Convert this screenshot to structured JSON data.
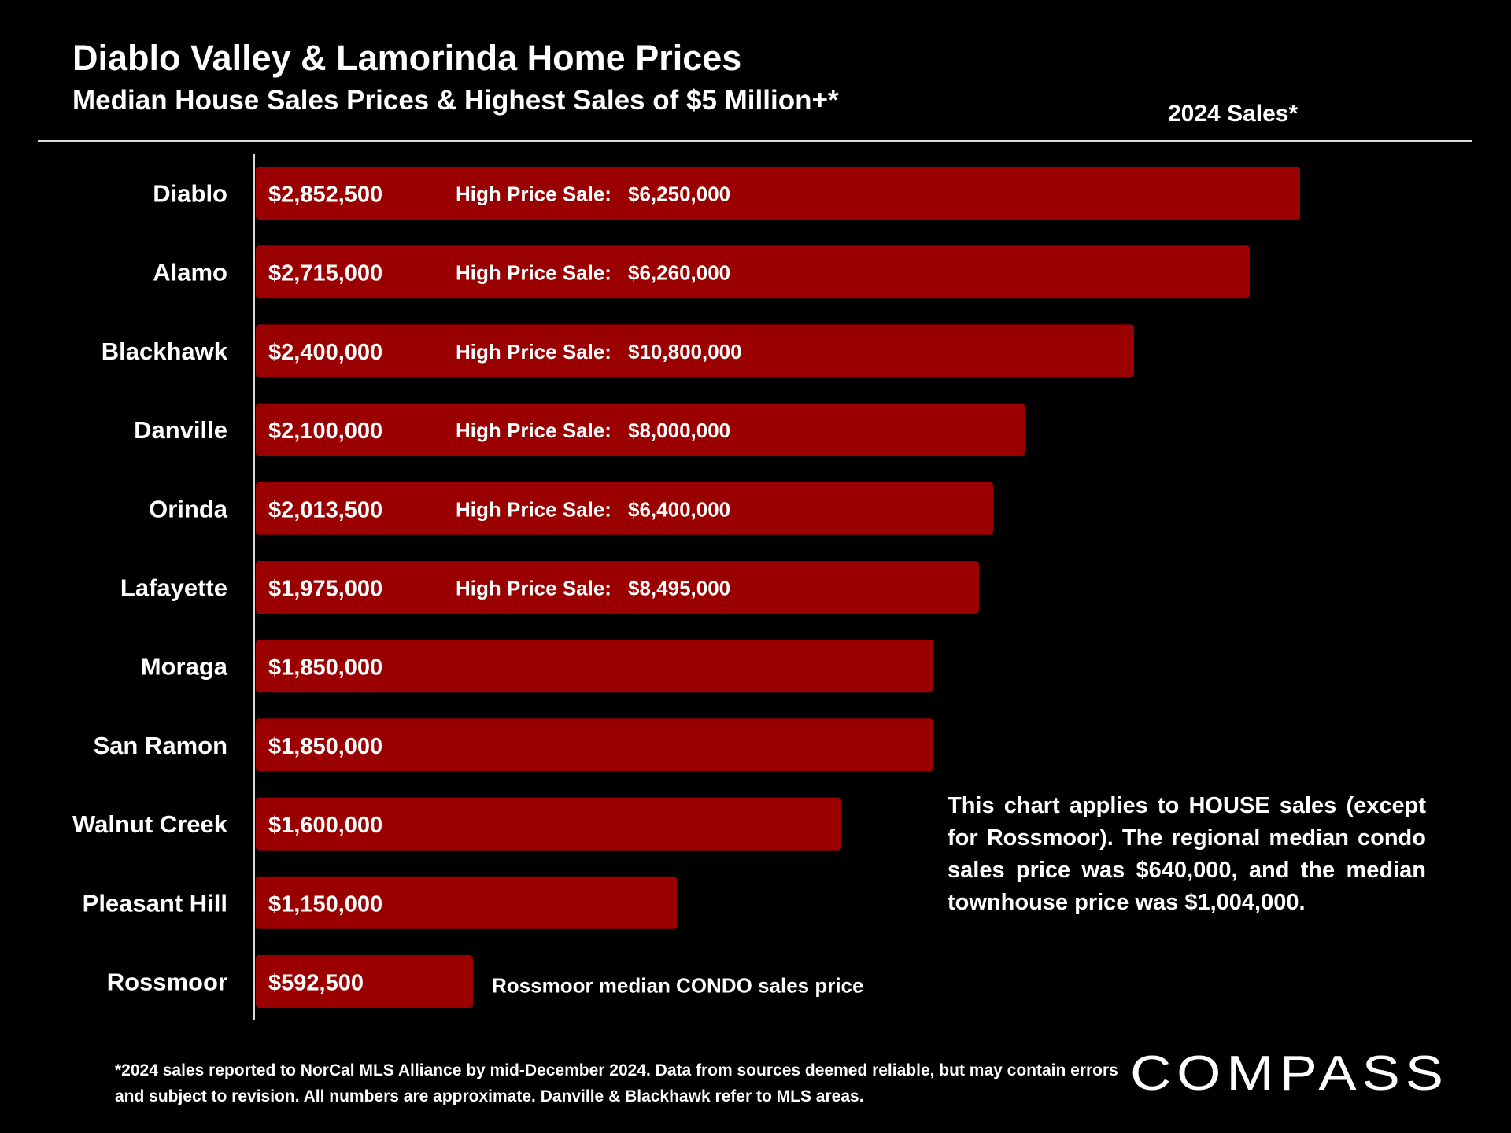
{
  "header": {
    "title": "Diablo Valley & Lamorinda Home Prices",
    "subtitle": "Median House Sales Prices & Highest Sales of $5 Million+*",
    "period": "2024 Sales*"
  },
  "note": "This chart applies to HOUSE sales (except for Rossmoor). The regional median condo sales price was $640,000, and the median townhouse price was $1,004,000.",
  "footnote": "*2024 sales reported to NorCal MLS Alliance by mid-December 2024. Data from sources deemed reliable, but may contain errors and subject to revision. All numbers are approximate. Danville & Blackhawk refer to MLS areas.",
  "logo": {
    "text": "COMPASS"
  },
  "colors": {
    "background": "#000000",
    "bar": "#9b0000",
    "text": "#ffffff",
    "rule": "#d9d9d9"
  },
  "chart_data": {
    "type": "bar",
    "orientation": "horizontal",
    "title": "Diablo Valley & Lamorinda Home Prices",
    "subtitle": "Median House Sales Prices & Highest Sales of $5 Million+*",
    "categories": [
      "Diablo",
      "Alamo",
      "Blackhawk",
      "Danville",
      "Orinda",
      "Lafayette",
      "Moraga",
      "San Ramon",
      "Walnut Creek",
      "Pleasant Hill",
      "Rossmoor"
    ],
    "values": [
      2852500,
      2715000,
      2400000,
      2100000,
      2013500,
      1975000,
      1850000,
      1850000,
      1600000,
      1150000,
      592500
    ],
    "value_labels": [
      "$2,852,500",
      "$2,715,000",
      "$2,400,000",
      "$2,100,000",
      "$2,013,500",
      "$1,975,000",
      "$1,850,000",
      "$1,850,000",
      "$1,600,000",
      "$1,150,000",
      "$592,500"
    ],
    "high_price_label": "High Price Sale:",
    "high_price_sales": [
      "$6,250,000",
      "$6,260,000",
      "$10,800,000",
      "$8,000,000",
      "$6,400,000",
      "$8,495,000",
      "",
      "",
      "",
      "",
      ""
    ],
    "annotation": "Rossmoor median CONDO sales price",
    "annotation_category": "Rossmoor",
    "xlim": [
      0,
      2852500
    ],
    "grid": false
  }
}
